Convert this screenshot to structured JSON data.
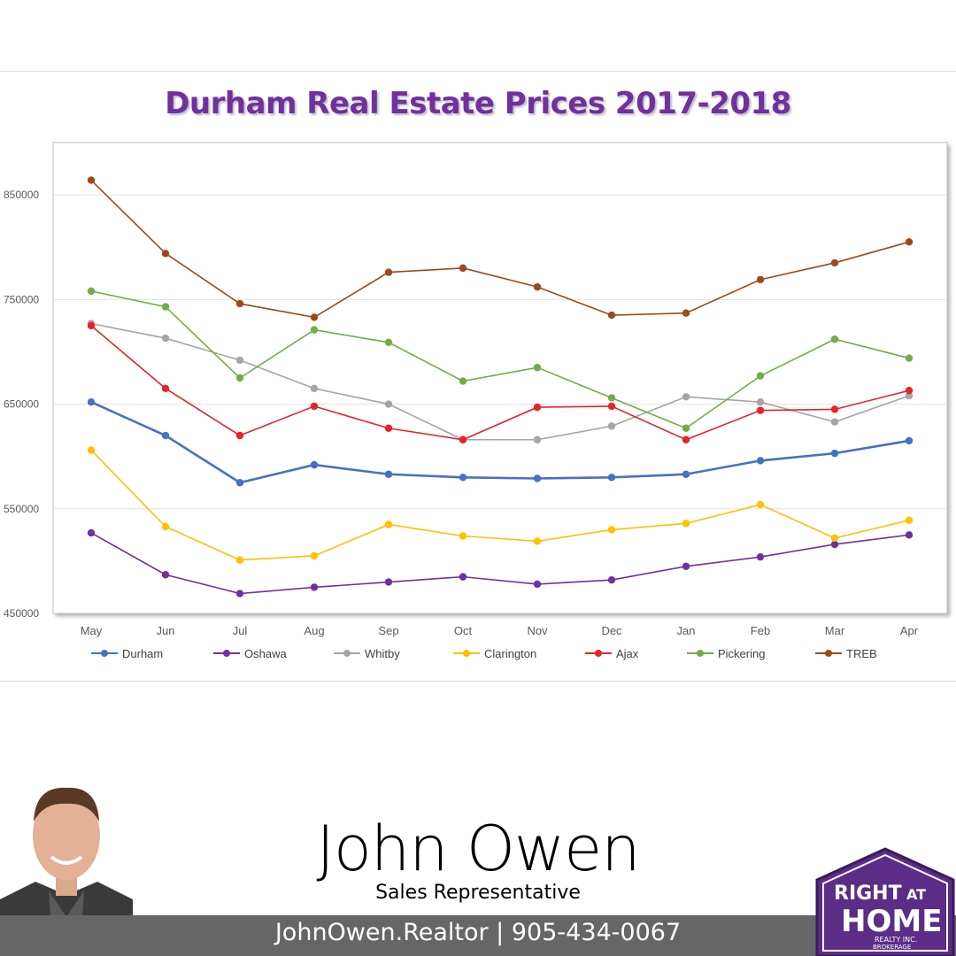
{
  "chart_data": {
    "type": "line",
    "title": "Durham Real Estate Prices 2017-2018",
    "categories": [
      "May",
      "Jun",
      "Jul",
      "Aug",
      "Sep",
      "Oct",
      "Nov",
      "Dec",
      "Jan",
      "Feb",
      "Mar",
      "Apr"
    ],
    "ylim": [
      450000,
      900000
    ],
    "yticks": [
      "850000",
      "750000",
      "650000",
      "550000",
      "450000"
    ],
    "ytick_values": [
      850000,
      750000,
      650000,
      550000,
      450000
    ],
    "grid": true,
    "legend_position": "bottom",
    "series": [
      {
        "name": "Durham",
        "color": "#4472c4",
        "values": [
          652000,
          620000,
          575000,
          592000,
          583000,
          580000,
          579000,
          580000,
          583000,
          596000,
          603000,
          615000
        ]
      },
      {
        "name": "Oshawa",
        "color": "#7030a0",
        "values": [
          527000,
          487000,
          469000,
          475000,
          480000,
          485000,
          478000,
          482000,
          495000,
          504000,
          516000,
          525000
        ]
      },
      {
        "name": "Whitby",
        "color": "#a5a5a5",
        "values": [
          727000,
          713000,
          692000,
          665000,
          650000,
          616000,
          616000,
          629000,
          657000,
          652000,
          633000,
          658000
        ]
      },
      {
        "name": "Clarington",
        "color": "#ffc000",
        "values": [
          606000,
          533000,
          501000,
          505000,
          535000,
          524000,
          519000,
          530000,
          536000,
          554000,
          522000,
          539000
        ]
      },
      {
        "name": "Ajax",
        "color": "#e8222a",
        "values": [
          725000,
          665000,
          620000,
          648000,
          627000,
          616000,
          647000,
          648000,
          616000,
          644000,
          645000,
          663000
        ]
      },
      {
        "name": "Pickering",
        "color": "#70ad47",
        "values": [
          758000,
          743000,
          675000,
          721000,
          709000,
          672000,
          685000,
          656000,
          627000,
          677000,
          712000,
          694000
        ]
      },
      {
        "name": "TREB",
        "color": "#9c4a1a",
        "values": [
          864000,
          794000,
          746000,
          733000,
          776000,
          780000,
          762000,
          735000,
          737000,
          769000,
          785000,
          805000
        ]
      }
    ]
  },
  "agent": {
    "name": "John Owen",
    "role": "Sales Representative",
    "contact": "JohnOwen.Realtor | 905-434-0067"
  },
  "logo": {
    "line1": "RIGHT",
    "line2": "AT",
    "line3": "HOME",
    "line4": "REALTY INC.",
    "line5": "BROKERAGE",
    "color": "#5b2d86"
  }
}
